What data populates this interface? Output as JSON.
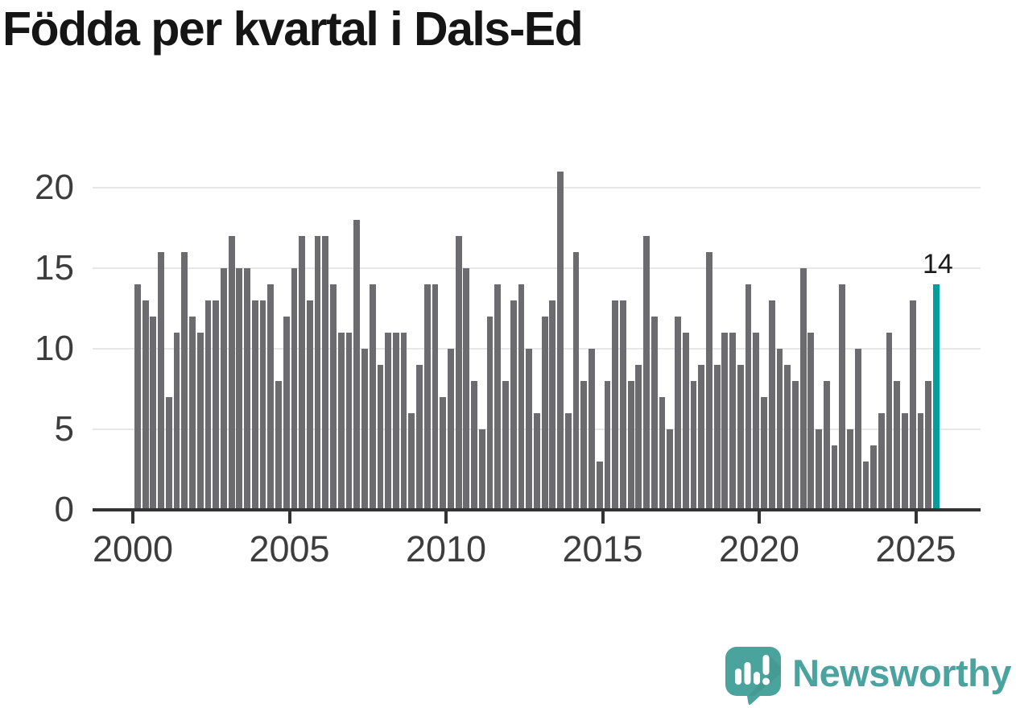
{
  "title": "Födda per kvartal i Dals-Ed",
  "chart_data": {
    "type": "bar",
    "title": "Födda per kvartal i Dals-Ed",
    "x_start": "2000 Q1",
    "x_end": "2025 Q3",
    "frequency": "quarterly",
    "values": [
      14,
      13,
      12,
      16,
      7,
      11,
      16,
      12,
      11,
      13,
      13,
      15,
      17,
      15,
      15,
      13,
      13,
      14,
      8,
      12,
      15,
      17,
      13,
      17,
      17,
      14,
      11,
      11,
      18,
      10,
      14,
      9,
      11,
      11,
      11,
      6,
      9,
      14,
      14,
      7,
      10,
      17,
      15,
      8,
      5,
      12,
      14,
      8,
      13,
      14,
      10,
      6,
      12,
      13,
      21,
      6,
      16,
      8,
      10,
      3,
      8,
      13,
      13,
      8,
      9,
      17,
      12,
      7,
      5,
      12,
      11,
      8,
      9,
      16,
      9,
      11,
      11,
      9,
      14,
      11,
      7,
      13,
      10,
      9,
      8,
      15,
      11,
      5,
      8,
      4,
      14,
      5,
      10,
      3,
      4,
      6,
      11,
      8,
      6,
      13,
      6,
      8,
      14
    ],
    "x_tick_labels": [
      "2000",
      "2005",
      "2010",
      "2015",
      "2020",
      "2025"
    ],
    "y_ticks": [
      0,
      5,
      10,
      15,
      20
    ],
    "y_tick_labels": [
      "0",
      "5",
      "10",
      "15",
      "20"
    ],
    "ylim": [
      0,
      21.5
    ],
    "grid": "horizontal",
    "legend": "none",
    "highlight_last_bar": true,
    "annotation_label": "14",
    "colors": {
      "bar": "#6c6b70",
      "highlight": "#009e9c",
      "gridline": "#e7e7e7",
      "axis": "#333333",
      "tick_label": "#3d3d3d",
      "title": "#151515",
      "annotation": "#1a1a1a"
    }
  },
  "branding": {
    "logo_text": "Newsworthy",
    "logo_color": "#4aa39e",
    "icon": "newsworthy-speech-bubble-chart-icon"
  }
}
